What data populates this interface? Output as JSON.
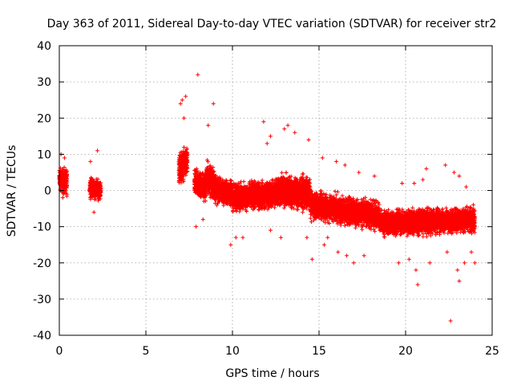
{
  "chart_data": {
    "type": "scatter",
    "title": "Day 363 of 2011, Sidereal Day-to-day VTEC variation (SDTVAR) for receiver str2",
    "xlabel": "GPS time / hours",
    "ylabel": "SDTVAR / TECUs",
    "xlim": [
      0,
      25
    ],
    "ylim": [
      -40,
      40
    ],
    "xticks": [
      0,
      5,
      10,
      15,
      20,
      25
    ],
    "yticks": [
      -40,
      -30,
      -20,
      -10,
      0,
      10,
      20,
      30,
      40
    ],
    "grid": true,
    "marker": "+",
    "color": "#ff0000",
    "series": [
      {
        "name": "SDTVAR",
        "segments": [
          {
            "x_start": 0.0,
            "x_end": 0.45,
            "center_start": 3,
            "center_end": 2,
            "spread": 4.5
          },
          {
            "x_start": 1.75,
            "x_end": 2.4,
            "center_start": 1,
            "center_end": 0,
            "spread": 3.5
          },
          {
            "x_start": 6.9,
            "x_end": 7.4,
            "center_start": 6,
            "center_end": 8,
            "spread": 5.5
          },
          {
            "x_start": 7.8,
            "x_end": 8.5,
            "center_start": 2,
            "center_end": 1,
            "spread": 5
          },
          {
            "x_start": 8.5,
            "x_end": 9.2,
            "center_start": 4,
            "center_end": 0,
            "spread": 5.5
          },
          {
            "x_start": 9.2,
            "x_end": 10.0,
            "center_start": 0,
            "center_end": -1,
            "spread": 4.5
          },
          {
            "x_start": 10.0,
            "x_end": 12.5,
            "center_start": -2,
            "center_end": -1,
            "spread": 5
          },
          {
            "x_start": 12.5,
            "x_end": 14.5,
            "center_start": 0,
            "center_end": -1,
            "spread": 6
          },
          {
            "x_start": 14.5,
            "x_end": 18.5,
            "center_start": -4,
            "center_end": -7,
            "spread": 5
          },
          {
            "x_start": 18.5,
            "x_end": 24.0,
            "center_start": -9,
            "center_end": -8,
            "spread": 4.5
          }
        ],
        "points": [
          [
            7.0,
            24
          ],
          [
            7.1,
            25
          ],
          [
            7.3,
            26
          ],
          [
            7.2,
            20
          ],
          [
            8.0,
            32
          ],
          [
            8.9,
            24
          ],
          [
            8.6,
            18
          ],
          [
            11.8,
            19
          ],
          [
            12.0,
            13
          ],
          [
            12.2,
            15
          ],
          [
            13.0,
            17
          ],
          [
            13.2,
            18
          ],
          [
            13.6,
            16
          ],
          [
            14.4,
            14
          ],
          [
            15.2,
            9
          ],
          [
            16.0,
            8
          ],
          [
            16.5,
            7
          ],
          [
            17.3,
            5
          ],
          [
            18.2,
            4
          ],
          [
            19.8,
            2
          ],
          [
            20.5,
            2
          ],
          [
            21.0,
            3
          ],
          [
            21.2,
            6
          ],
          [
            22.3,
            7
          ],
          [
            22.8,
            5
          ],
          [
            23.1,
            4
          ],
          [
            23.5,
            1
          ],
          [
            7.9,
            -10
          ],
          [
            8.3,
            -8
          ],
          [
            9.9,
            -15
          ],
          [
            10.2,
            -13
          ],
          [
            10.6,
            -13
          ],
          [
            12.2,
            -11
          ],
          [
            12.8,
            -13
          ],
          [
            14.3,
            -13
          ],
          [
            14.6,
            -19
          ],
          [
            15.3,
            -15
          ],
          [
            15.5,
            -13
          ],
          [
            16.1,
            -17
          ],
          [
            16.6,
            -18
          ],
          [
            17.0,
            -20
          ],
          [
            17.6,
            -18
          ],
          [
            19.6,
            -20
          ],
          [
            20.2,
            -19
          ],
          [
            20.6,
            -22
          ],
          [
            20.7,
            -26
          ],
          [
            21.4,
            -20
          ],
          [
            22.4,
            -17
          ],
          [
            22.6,
            -36
          ],
          [
            23.0,
            -22
          ],
          [
            23.1,
            -25
          ],
          [
            23.4,
            -20
          ],
          [
            23.8,
            -17
          ],
          [
            24.0,
            -20
          ],
          [
            0.1,
            10
          ],
          [
            0.3,
            9
          ],
          [
            2.2,
            11
          ],
          [
            1.8,
            8
          ],
          [
            2.0,
            -6
          ],
          [
            0.2,
            -2
          ]
        ]
      }
    ]
  }
}
